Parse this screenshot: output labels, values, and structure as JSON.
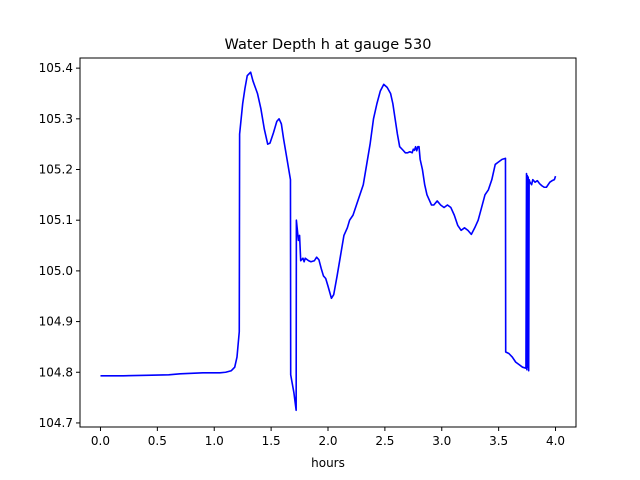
{
  "chart_data": {
    "type": "line",
    "title": "Water Depth h at gauge 530",
    "xlabel": "hours",
    "ylabel": "",
    "xlim": [
      -0.18,
      4.18
    ],
    "ylim": [
      104.692,
      105.42
    ],
    "xticks": [
      0.0,
      0.5,
      1.0,
      1.5,
      2.0,
      2.5,
      3.0,
      3.5,
      4.0
    ],
    "xtick_labels": [
      "0.0",
      "0.5",
      "1.0",
      "1.5",
      "2.0",
      "2.5",
      "3.0",
      "3.5",
      "4.0"
    ],
    "yticks": [
      104.7,
      104.8,
      104.9,
      105.0,
      105.1,
      105.2,
      105.3,
      105.4
    ],
    "ytick_labels": [
      "104.7",
      "104.8",
      "104.9",
      "105.0",
      "105.1",
      "105.2",
      "105.3",
      "105.4"
    ],
    "grid": false,
    "series": [
      {
        "color": "#0000ff",
        "points": [
          [
            0.0,
            104.793
          ],
          [
            0.2,
            104.793
          ],
          [
            0.4,
            104.794
          ],
          [
            0.6,
            104.795
          ],
          [
            0.7,
            104.797
          ],
          [
            0.8,
            104.798
          ],
          [
            0.9,
            104.799
          ],
          [
            1.0,
            104.799
          ],
          [
            1.05,
            104.799
          ],
          [
            1.1,
            104.8
          ],
          [
            1.15,
            104.803
          ],
          [
            1.18,
            104.81
          ],
          [
            1.2,
            104.83
          ],
          [
            1.22,
            104.88
          ],
          [
            1.223,
            105.27
          ],
          [
            1.25,
            105.33
          ],
          [
            1.27,
            105.36
          ],
          [
            1.29,
            105.385
          ],
          [
            1.32,
            105.392
          ],
          [
            1.34,
            105.375
          ],
          [
            1.38,
            105.35
          ],
          [
            1.41,
            105.32
          ],
          [
            1.44,
            105.28
          ],
          [
            1.47,
            105.25
          ],
          [
            1.49,
            105.252
          ],
          [
            1.52,
            105.272
          ],
          [
            1.55,
            105.295
          ],
          [
            1.57,
            105.3
          ],
          [
            1.59,
            105.29
          ],
          [
            1.61,
            105.26
          ],
          [
            1.64,
            105.22
          ],
          [
            1.67,
            105.18
          ],
          [
            1.672,
            104.795
          ],
          [
            1.7,
            104.76
          ],
          [
            1.72,
            104.725
          ],
          [
            1.722,
            105.1
          ],
          [
            1.74,
            105.06
          ],
          [
            1.75,
            105.07
          ],
          [
            1.76,
            105.02
          ],
          [
            1.78,
            105.025
          ],
          [
            1.79,
            105.018
          ],
          [
            1.8,
            105.025
          ],
          [
            1.83,
            105.02
          ],
          [
            1.85,
            105.018
          ],
          [
            1.88,
            105.02
          ],
          [
            1.9,
            105.027
          ],
          [
            1.92,
            105.022
          ],
          [
            1.94,
            105.005
          ],
          [
            1.96,
            104.99
          ],
          [
            1.98,
            104.985
          ],
          [
            2.0,
            104.97
          ],
          [
            2.03,
            104.946
          ],
          [
            2.05,
            104.953
          ],
          [
            2.08,
            104.99
          ],
          [
            2.11,
            105.03
          ],
          [
            2.14,
            105.07
          ],
          [
            2.17,
            105.085
          ],
          [
            2.19,
            105.1
          ],
          [
            2.22,
            105.11
          ],
          [
            2.25,
            105.13
          ],
          [
            2.28,
            105.15
          ],
          [
            2.31,
            105.17
          ],
          [
            2.34,
            105.21
          ],
          [
            2.37,
            105.25
          ],
          [
            2.4,
            105.3
          ],
          [
            2.43,
            105.33
          ],
          [
            2.46,
            105.355
          ],
          [
            2.49,
            105.368
          ],
          [
            2.52,
            105.362
          ],
          [
            2.55,
            105.35
          ],
          [
            2.57,
            105.33
          ],
          [
            2.59,
            105.3
          ],
          [
            2.61,
            105.27
          ],
          [
            2.63,
            105.245
          ],
          [
            2.66,
            105.238
          ],
          [
            2.68,
            105.233
          ],
          [
            2.7,
            105.233
          ],
          [
            2.72,
            105.235
          ],
          [
            2.74,
            105.233
          ],
          [
            2.75,
            105.24
          ],
          [
            2.76,
            105.238
          ],
          [
            2.77,
            105.245
          ],
          [
            2.78,
            105.237
          ],
          [
            2.79,
            105.245
          ],
          [
            2.8,
            105.245
          ],
          [
            2.81,
            105.22
          ],
          [
            2.83,
            105.2
          ],
          [
            2.85,
            105.17
          ],
          [
            2.87,
            105.15
          ],
          [
            2.89,
            105.14
          ],
          [
            2.91,
            105.13
          ],
          [
            2.93,
            105.13
          ],
          [
            2.96,
            105.138
          ],
          [
            2.99,
            105.13
          ],
          [
            3.02,
            105.125
          ],
          [
            3.05,
            105.13
          ],
          [
            3.08,
            105.125
          ],
          [
            3.11,
            105.11
          ],
          [
            3.14,
            105.09
          ],
          [
            3.17,
            105.08
          ],
          [
            3.2,
            105.085
          ],
          [
            3.23,
            105.08
          ],
          [
            3.26,
            105.072
          ],
          [
            3.29,
            105.085
          ],
          [
            3.32,
            105.1
          ],
          [
            3.35,
            105.125
          ],
          [
            3.38,
            105.15
          ],
          [
            3.41,
            105.16
          ],
          [
            3.44,
            105.18
          ],
          [
            3.47,
            105.21
          ],
          [
            3.5,
            105.215
          ],
          [
            3.53,
            105.22
          ],
          [
            3.56,
            105.222
          ],
          [
            3.562,
            104.84
          ],
          [
            3.59,
            104.837
          ],
          [
            3.62,
            104.83
          ],
          [
            3.65,
            104.82
          ],
          [
            3.68,
            104.815
          ],
          [
            3.71,
            104.81
          ],
          [
            3.74,
            104.808
          ],
          [
            3.745,
            105.192
          ],
          [
            3.748,
            104.805
          ],
          [
            3.752,
            105.188
          ],
          [
            3.756,
            104.81
          ],
          [
            3.76,
            105.185
          ],
          [
            3.764,
            104.803
          ],
          [
            3.768,
            105.18
          ],
          [
            3.775,
            105.175
          ],
          [
            3.79,
            105.17
          ],
          [
            3.8,
            105.18
          ],
          [
            3.82,
            105.175
          ],
          [
            3.84,
            105.178
          ],
          [
            3.86,
            105.172
          ],
          [
            3.88,
            105.168
          ],
          [
            3.9,
            105.165
          ],
          [
            3.92,
            105.165
          ],
          [
            3.95,
            105.175
          ],
          [
            3.97,
            105.178
          ],
          [
            3.99,
            105.18
          ],
          [
            4.0,
            105.187
          ]
        ]
      }
    ]
  }
}
